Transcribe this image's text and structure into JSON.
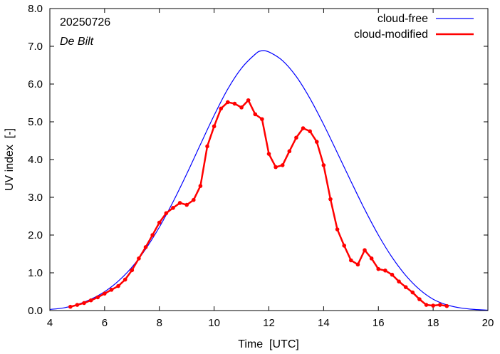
{
  "chart_data": {
    "type": "line",
    "xlabel": "Time  [UTC]",
    "ylabel": "UV index  [-]",
    "xlim": [
      4,
      20
    ],
    "ylim": [
      0,
      8
    ],
    "x_ticks": [
      "4",
      "6",
      "8",
      "10",
      "12",
      "14",
      "16",
      "18",
      "20"
    ],
    "y_ticks": [
      "0.0",
      "1.0",
      "2.0",
      "3.0",
      "4.0",
      "5.0",
      "6.0",
      "7.0",
      "8.0"
    ],
    "annotations": {
      "date": "20250726",
      "location": "De Bilt"
    },
    "legend_position": "top-right",
    "series": [
      {
        "name": "cloud-free",
        "color": "#0000ff",
        "markers": false,
        "peak_x": 11.72,
        "peak_y": 6.88,
        "x": [
          4.0,
          4.5,
          5.0,
          5.5,
          6.0,
          6.5,
          7.0,
          7.5,
          8.0,
          8.5,
          9.0,
          9.5,
          10.0,
          10.5,
          11.0,
          11.5,
          11.72,
          12.0,
          12.5,
          13.0,
          13.5,
          14.0,
          14.5,
          15.0,
          15.5,
          16.0,
          16.5,
          17.0,
          17.5,
          18.0,
          18.5,
          19.0,
          19.5,
          20.0
        ],
        "y": [
          0.03,
          0.07,
          0.16,
          0.3,
          0.5,
          0.78,
          1.15,
          1.63,
          2.21,
          2.88,
          3.62,
          4.4,
          5.17,
          5.87,
          6.42,
          6.79,
          6.88,
          6.85,
          6.62,
          6.2,
          5.62,
          4.93,
          4.18,
          3.42,
          2.68,
          2.0,
          1.41,
          0.93,
          0.56,
          0.3,
          0.15,
          0.07,
          0.03,
          0.01
        ]
      },
      {
        "name": "cloud-modified",
        "color": "#ff0000",
        "markers": true,
        "x": [
          4.75,
          5.0,
          5.25,
          5.5,
          5.75,
          6.0,
          6.25,
          6.5,
          6.75,
          7.0,
          7.25,
          7.5,
          7.75,
          8.0,
          8.25,
          8.5,
          8.75,
          9.0,
          9.25,
          9.5,
          9.75,
          10.0,
          10.25,
          10.5,
          10.75,
          11.0,
          11.25,
          11.5,
          11.75,
          12.0,
          12.25,
          12.5,
          12.75,
          13.0,
          13.25,
          13.5,
          13.75,
          14.0,
          14.25,
          14.5,
          14.75,
          15.0,
          15.25,
          15.5,
          15.75,
          16.0,
          16.25,
          16.5,
          16.75,
          17.0,
          17.25,
          17.5,
          17.75,
          18.0,
          18.25,
          18.5
        ],
        "y": [
          0.1,
          0.15,
          0.2,
          0.27,
          0.35,
          0.45,
          0.55,
          0.65,
          0.82,
          1.07,
          1.38,
          1.68,
          2.0,
          2.33,
          2.58,
          2.72,
          2.85,
          2.8,
          2.93,
          3.3,
          4.35,
          4.88,
          5.35,
          5.52,
          5.48,
          5.38,
          5.57,
          5.2,
          5.07,
          4.15,
          3.8,
          3.85,
          4.22,
          4.58,
          4.83,
          4.75,
          4.47,
          3.85,
          2.95,
          2.15,
          1.72,
          1.33,
          1.22,
          1.6,
          1.38,
          1.1,
          1.06,
          0.95,
          0.77,
          0.62,
          0.48,
          0.3,
          0.15,
          0.13,
          0.15,
          0.12
        ]
      }
    ]
  }
}
